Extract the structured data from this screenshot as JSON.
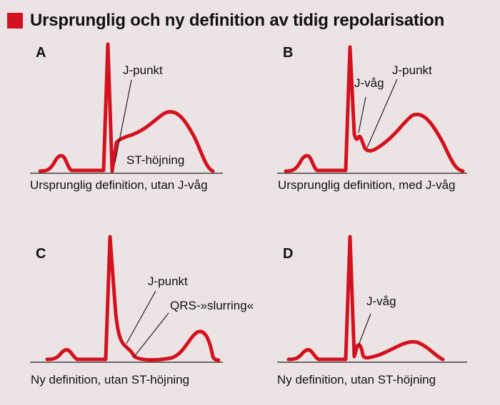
{
  "title": "Ursprunglig och ny definition av tidig repolarisation",
  "accent_color": "#d4121f",
  "panels": {
    "a": {
      "letter": "A",
      "annotations": {
        "j_punkt": "J-punkt",
        "st_hojning": "ST-höjning"
      },
      "caption": "Ursprunglig definition, utan J-våg"
    },
    "b": {
      "letter": "B",
      "annotations": {
        "j_vag": "J-våg",
        "j_punkt": "J-punkt"
      },
      "caption": "Ursprunglig definition, med J-våg"
    },
    "c": {
      "letter": "C",
      "annotations": {
        "j_punkt": "J-punkt",
        "qrs_slurring": "QRS-»slurring«"
      },
      "caption": "Ny definition, utan ST-höjning"
    },
    "d": {
      "letter": "D",
      "annotations": {
        "j_vag": "J-våg"
      },
      "caption": "Ny definition, utan ST-höjning"
    }
  }
}
